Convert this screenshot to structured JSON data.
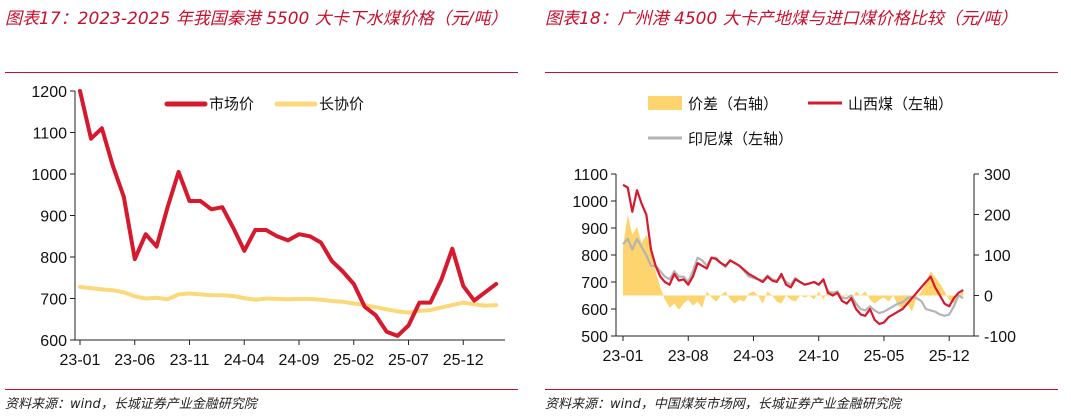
{
  "chart_data": [
    {
      "id": "fig17",
      "type": "line",
      "title": "图表17：2023-2025 年我国秦港 5500 大卡下水煤价格（元/吨）",
      "source": "资料来源：wind，长城证券产业金融研究院",
      "ylim": [
        600,
        1200
      ],
      "yticks": [
        "600",
        "700",
        "800",
        "900",
        "1000",
        "1100",
        "1200"
      ],
      "xlim": [
        0,
        35
      ],
      "xticks": [
        {
          "label": "23-01",
          "x": 0
        },
        {
          "label": "23-06",
          "x": 5
        },
        {
          "label": "23-11",
          "x": 10
        },
        {
          "label": "24-04",
          "x": 15
        },
        {
          "label": "24-09",
          "x": 20
        },
        {
          "label": "25-02",
          "x": 25
        },
        {
          "label": "25-07",
          "x": 30
        },
        {
          "label": "25-12",
          "x": 35
        }
      ],
      "series": [
        {
          "name": "市场价",
          "color": "#d7192e",
          "width": 4,
          "x": [
            0,
            1,
            2,
            3,
            4,
            5,
            6,
            7,
            8,
            9,
            10,
            11,
            12,
            13,
            14,
            15,
            16,
            17,
            18,
            19,
            20,
            21,
            22,
            23,
            24,
            25,
            26,
            27,
            28,
            29,
            30,
            31,
            32,
            33,
            34,
            35,
            36,
            37,
            38
          ],
          "values": [
            1200,
            1085,
            1110,
            1020,
            945,
            795,
            855,
            825,
            920,
            1005,
            935,
            935,
            915,
            920,
            870,
            815,
            865,
            865,
            850,
            840,
            855,
            850,
            835,
            790,
            765,
            735,
            680,
            660,
            620,
            610,
            635,
            690,
            690,
            745,
            820,
            730,
            695,
            715,
            735
          ]
        },
        {
          "name": "长协价",
          "color": "#fbd97a",
          "width": 4,
          "x": [
            0,
            1,
            2,
            3,
            4,
            5,
            6,
            7,
            8,
            9,
            10,
            11,
            12,
            13,
            14,
            15,
            16,
            17,
            18,
            19,
            20,
            21,
            22,
            23,
            24,
            25,
            26,
            27,
            28,
            29,
            30,
            31,
            32,
            33,
            34,
            35,
            36,
            37,
            38
          ],
          "values": [
            728,
            725,
            722,
            720,
            715,
            705,
            700,
            702,
            698,
            710,
            712,
            710,
            708,
            708,
            706,
            701,
            697,
            700,
            699,
            698,
            699,
            699,
            697,
            694,
            692,
            688,
            684,
            679,
            674,
            669,
            666,
            670,
            672,
            678,
            684,
            690,
            686,
            683,
            684
          ]
        }
      ],
      "legend": [
        "市场价",
        "长协价"
      ],
      "legend_position": "top-center"
    },
    {
      "id": "fig18",
      "type": "line",
      "title": "图表18：广州港 4500 大卡产地煤与进口煤价格比较（元/吨）",
      "source": "资料来源：wind，中国煤炭市场网，长城证券产业金融研究院",
      "ylim": [
        500,
        1100
      ],
      "yticks": [
        "500",
        "600",
        "700",
        "800",
        "900",
        "1000",
        "1100"
      ],
      "y2lim": [
        -100,
        300
      ],
      "y2ticks": [
        "-100",
        "0",
        "100",
        "200",
        "300"
      ],
      "xlim": [
        0,
        35
      ],
      "xticks": [
        {
          "label": "23-01",
          "x": 0
        },
        {
          "label": "23-08",
          "x": 7
        },
        {
          "label": "24-03",
          "x": 14
        },
        {
          "label": "24-10",
          "x": 21
        },
        {
          "label": "25-05",
          "x": 28
        },
        {
          "label": "25-12",
          "x": 35
        }
      ],
      "series": [
        {
          "name": "价差（右轴）",
          "type": "area",
          "axis": "right",
          "color": "#fdd46e",
          "x": [
            0,
            0.5,
            1,
            1.5,
            2,
            2.5,
            3,
            3.5,
            4,
            4.5,
            5,
            5.5,
            6,
            6.5,
            7,
            7.5,
            8,
            8.5,
            9,
            9.5,
            10,
            10.5,
            11,
            11.5,
            12,
            12.5,
            13,
            13.5,
            14,
            14.5,
            15,
            15.5,
            16,
            16.5,
            17,
            17.5,
            18,
            18.5,
            19,
            19.5,
            20,
            20.5,
            21,
            21.5,
            22,
            22.5,
            23,
            23.5,
            24,
            24.5,
            25,
            25.5,
            26,
            26.5,
            27,
            27.5,
            28,
            28.5,
            29,
            29.5,
            30,
            30.5,
            31,
            31.5,
            32,
            32.5,
            33,
            33.5,
            34,
            34.5,
            35,
            35.5,
            36,
            36.5
          ],
          "values": [
            120,
            200,
            150,
            170,
            130,
            150,
            120,
            60,
            20,
            -10,
            -30,
            -20,
            -35,
            -20,
            -10,
            -25,
            -15,
            -30,
            10,
            -5,
            -15,
            0,
            10,
            -10,
            -20,
            -10,
            -15,
            5,
            10,
            0,
            -20,
            10,
            0,
            -15,
            -20,
            0,
            -10,
            -15,
            0,
            -5,
            0,
            -10,
            10,
            -10,
            15,
            5,
            0,
            -10,
            5,
            -15,
            10,
            0,
            10,
            -10,
            -20,
            -10,
            -5,
            -15,
            0,
            -25,
            -30,
            -20,
            -40,
            -5,
            10,
            30,
            60,
            45,
            30,
            10,
            -10,
            -20,
            0,
            10
          ],
          "legend": "价差（右轴）"
        },
        {
          "name": "山西煤（左轴）",
          "axis": "left",
          "color": "#d7192e",
          "width": 2.2,
          "x": [
            0,
            0.5,
            1,
            1.5,
            2,
            2.5,
            3,
            3.5,
            4,
            4.5,
            5,
            5.5,
            6,
            6.5,
            7,
            7.5,
            8,
            8.5,
            9,
            9.5,
            10,
            10.5,
            11,
            11.5,
            12,
            12.5,
            13,
            13.5,
            14,
            14.5,
            15,
            15.5,
            16,
            16.5,
            17,
            17.5,
            18,
            18.5,
            19,
            19.5,
            20,
            20.5,
            21,
            21.5,
            22,
            22.5,
            23,
            23.5,
            24,
            24.5,
            25,
            25.5,
            26,
            26.5,
            27,
            27.5,
            28,
            28.5,
            29,
            29.5,
            30,
            30.5,
            31,
            31.5,
            32,
            32.5,
            33,
            33.5,
            34,
            34.5,
            35,
            35.5,
            36,
            36.5
          ],
          "values": [
            1060,
            1050,
            960,
            1040,
            990,
            950,
            820,
            760,
            720,
            700,
            690,
            730,
            705,
            710,
            690,
            720,
            770,
            760,
            750,
            790,
            785,
            770,
            760,
            780,
            770,
            760,
            745,
            730,
            720,
            710,
            700,
            720,
            705,
            700,
            730,
            690,
            680,
            710,
            700,
            690,
            695,
            700,
            690,
            710,
            660,
            650,
            660,
            630,
            620,
            640,
            600,
            580,
            575,
            600,
            560,
            545,
            550,
            570,
            580,
            590,
            600,
            620,
            640,
            660,
            680,
            700,
            720,
            680,
            650,
            620,
            610,
            640,
            660,
            670
          ],
          "legend": "山西煤（左轴）"
        },
        {
          "name": "印尼煤（左轴）",
          "axis": "left",
          "color": "#b4b4b4",
          "width": 2.2,
          "x": [
            0,
            0.5,
            1,
            1.5,
            2,
            2.5,
            3,
            3.5,
            4,
            4.5,
            5,
            5.5,
            6,
            6.5,
            7,
            7.5,
            8,
            8.5,
            9,
            9.5,
            10,
            10.5,
            11,
            11.5,
            12,
            12.5,
            13,
            13.5,
            14,
            14.5,
            15,
            15.5,
            16,
            16.5,
            17,
            17.5,
            18,
            18.5,
            19,
            19.5,
            20,
            20.5,
            21,
            21.5,
            22,
            22.5,
            23,
            23.5,
            24,
            24.5,
            25,
            25.5,
            26,
            26.5,
            27,
            27.5,
            28,
            28.5,
            29,
            29.5,
            30,
            30.5,
            31,
            31.5,
            32,
            32.5,
            33,
            33.5,
            34,
            34.5,
            35,
            35.5,
            36,
            36.5
          ],
          "values": [
            840,
            860,
            820,
            860,
            830,
            800,
            760,
            760,
            740,
            720,
            710,
            740,
            720,
            720,
            700,
            740,
            790,
            780,
            760,
            790,
            790,
            770,
            755,
            780,
            770,
            760,
            740,
            720,
            715,
            710,
            705,
            725,
            710,
            705,
            720,
            700,
            690,
            715,
            700,
            690,
            695,
            700,
            690,
            705,
            665,
            660,
            665,
            640,
            640,
            650,
            620,
            600,
            595,
            610,
            595,
            585,
            590,
            600,
            610,
            620,
            625,
            640,
            645,
            640,
            630,
            600,
            595,
            590,
            580,
            575,
            580,
            610,
            650,
            640
          ],
          "legend": "印尼煤（左轴）"
        }
      ],
      "legend": [
        "价差（右轴）",
        "山西煤（左轴）",
        "印尼煤（左轴）"
      ],
      "legend_position": "top"
    }
  ]
}
